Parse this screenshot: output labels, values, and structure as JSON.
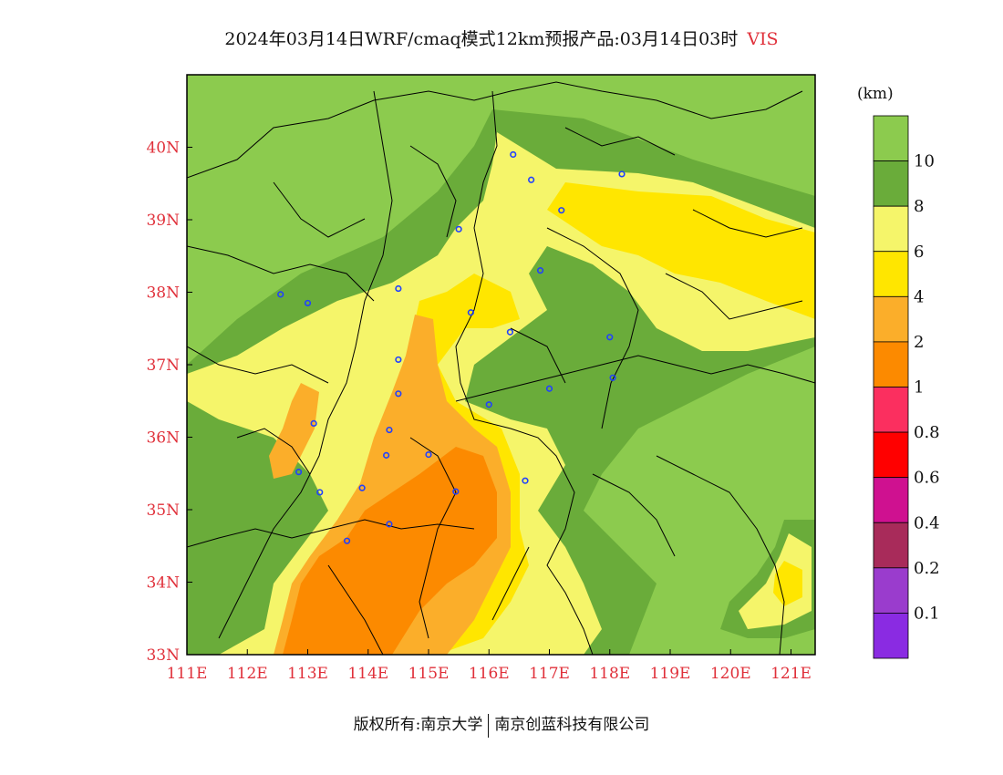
{
  "title": {
    "main": "2024年03月14日WRF/cmaq模式12km预报产品:03月14日03时",
    "variable": "VIS"
  },
  "map": {
    "lon_range": [
      111,
      121.4
    ],
    "lat_range": [
      33,
      41
    ],
    "lon_ticks": [
      "111E",
      "112E",
      "113E",
      "114E",
      "115E",
      "116E",
      "117E",
      "118E",
      "119E",
      "120E",
      "121E"
    ],
    "lat_ticks": [
      "33N",
      "34N",
      "35N",
      "36N",
      "37N",
      "38N",
      "39N",
      "40N"
    ],
    "colors": {
      "v10plus": "#8ccb4e",
      "v8_10": "#6aac3a",
      "v6_8": "#f5f56a",
      "v4_6": "#ffe600",
      "v2_4": "#fbae2a",
      "v1_2": "#fc8a00",
      "city_marker": "#2040ff",
      "boundary": "#000000"
    },
    "cities": [
      {
        "lon": 116.4,
        "lat": 39.9
      },
      {
        "lon": 116.7,
        "lat": 39.55
      },
      {
        "lon": 117.2,
        "lat": 39.13
      },
      {
        "lon": 118.2,
        "lat": 39.63
      },
      {
        "lon": 115.5,
        "lat": 38.87
      },
      {
        "lon": 116.85,
        "lat": 38.3
      },
      {
        "lon": 114.5,
        "lat": 38.05
      },
      {
        "lon": 112.55,
        "lat": 37.97
      },
      {
        "lon": 113.0,
        "lat": 37.85
      },
      {
        "lon": 115.7,
        "lat": 37.72
      },
      {
        "lon": 116.35,
        "lat": 37.45
      },
      {
        "lon": 118.0,
        "lat": 37.38
      },
      {
        "lon": 114.5,
        "lat": 37.07
      },
      {
        "lon": 114.5,
        "lat": 36.6
      },
      {
        "lon": 116.0,
        "lat": 36.45
      },
      {
        "lon": 117.0,
        "lat": 36.67
      },
      {
        "lon": 118.05,
        "lat": 36.82
      },
      {
        "lon": 113.1,
        "lat": 36.19
      },
      {
        "lon": 114.35,
        "lat": 36.1
      },
      {
        "lon": 114.3,
        "lat": 35.75
      },
      {
        "lon": 115.0,
        "lat": 35.76
      },
      {
        "lon": 112.85,
        "lat": 35.52
      },
      {
        "lon": 113.9,
        "lat": 35.3
      },
      {
        "lon": 113.2,
        "lat": 35.24
      },
      {
        "lon": 116.6,
        "lat": 35.4
      },
      {
        "lon": 115.45,
        "lat": 35.25
      },
      {
        "lon": 114.35,
        "lat": 34.8
      },
      {
        "lon": 113.65,
        "lat": 34.57
      }
    ]
  },
  "legend": {
    "unit": "(km)",
    "bins": [
      {
        "color": "#8ccb4e"
      },
      {
        "color": "#6aac3a",
        "label": "10"
      },
      {
        "color": "#f5f56a",
        "label": "8"
      },
      {
        "color": "#ffe600",
        "label": "6"
      },
      {
        "color": "#fbae2a",
        "label": "4"
      },
      {
        "color": "#fc8a00",
        "label": "2"
      },
      {
        "color": "#fb2f5f",
        "label": "1"
      },
      {
        "color": "#ff0000",
        "label": "0.8"
      },
      {
        "color": "#cf1190",
        "label": "0.6"
      },
      {
        "color": "#a82b5a",
        "label": "0.4"
      },
      {
        "color": "#9a3ccd",
        "label": "0.2"
      },
      {
        "color": "#8a2be2",
        "label": "0.1"
      }
    ]
  },
  "footer": {
    "left": "版权所有:南京大学",
    "right": "南京创蓝科技有限公司"
  }
}
